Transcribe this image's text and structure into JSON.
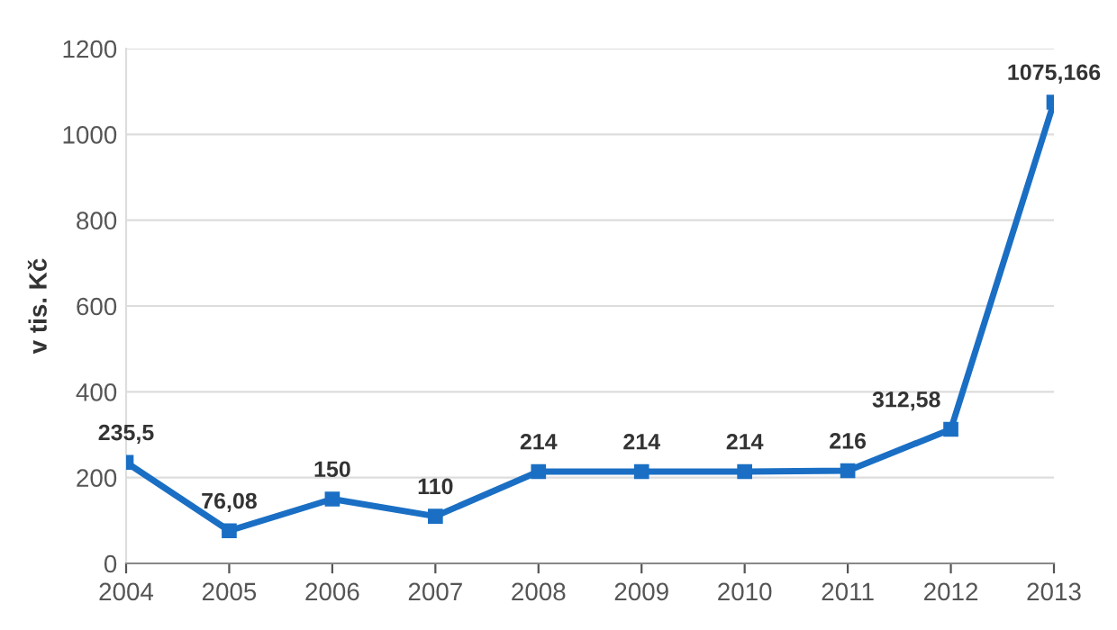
{
  "chart_data": {
    "type": "line",
    "ylabel": "v tis. Kč",
    "categories": [
      "2004",
      "2005",
      "2006",
      "2007",
      "2008",
      "2009",
      "2010",
      "2011",
      "2012",
      "2013"
    ],
    "series": [
      {
        "color": "#1a6fc4",
        "values": [
          235.5,
          76.08,
          150,
          110,
          214,
          214,
          214,
          216,
          312.58,
          1075.166
        ],
        "value_labels": [
          "235,5",
          "76,08",
          "150",
          "110",
          "214",
          "214",
          "214",
          "216",
          "312,58",
          "1075,166"
        ]
      }
    ],
    "ylim": [
      0,
      1200
    ],
    "yticks": [
      0,
      200,
      400,
      600,
      800,
      1000,
      1200
    ],
    "grid": "y",
    "marker": "square",
    "line_style": "solid"
  }
}
